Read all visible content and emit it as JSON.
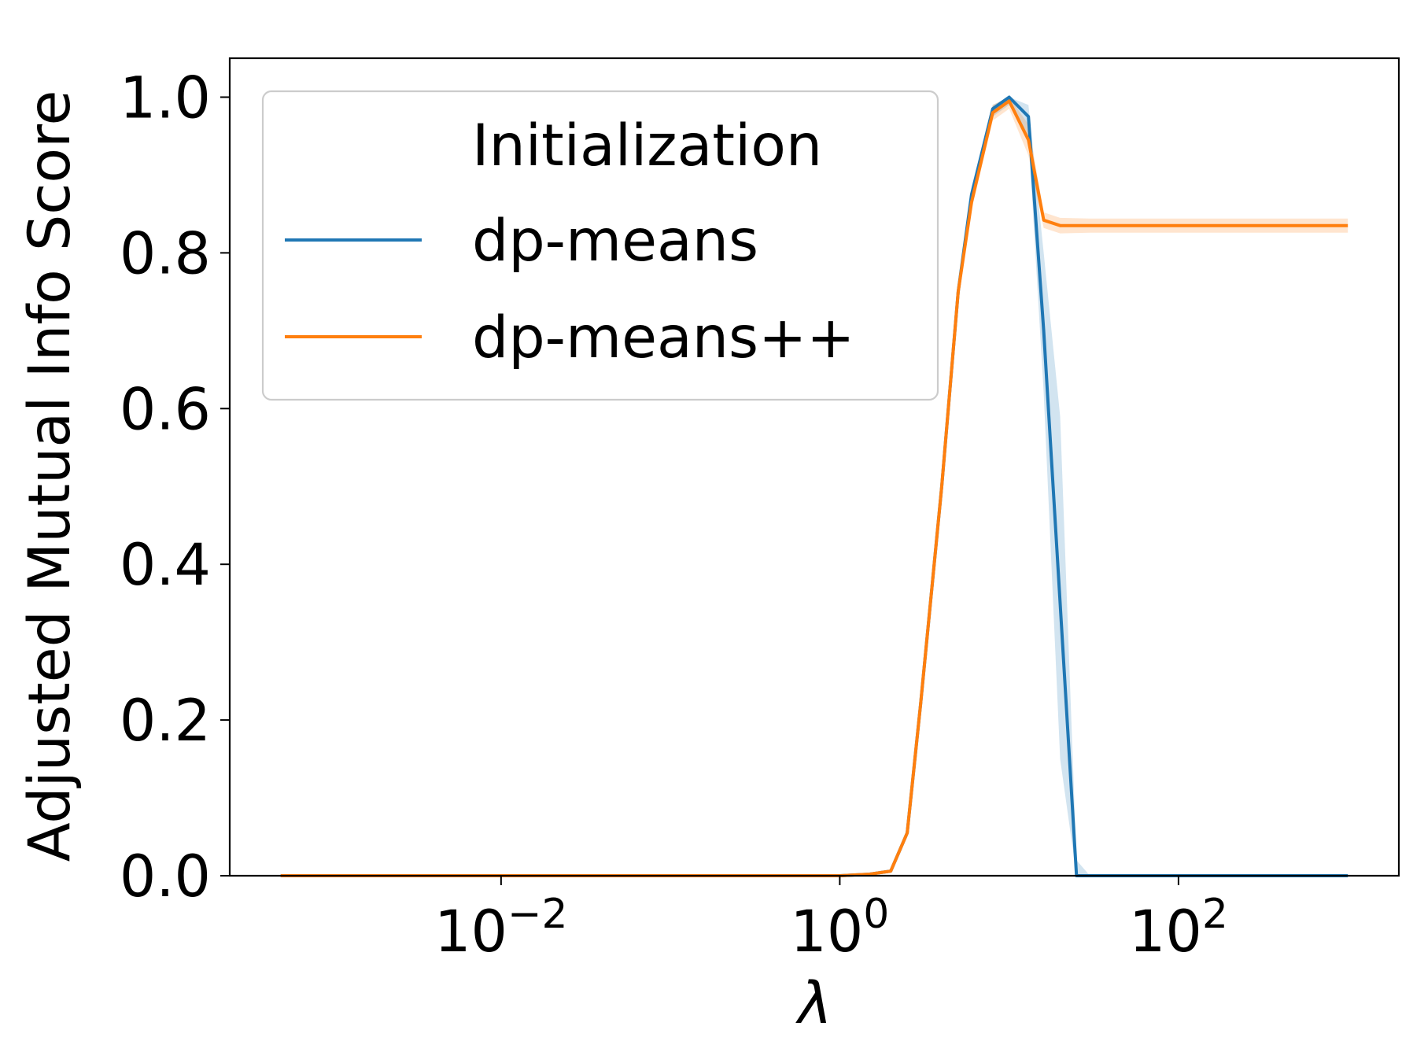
{
  "chart_data": {
    "type": "line",
    "title": "",
    "xlabel": "λ",
    "ylabel": "Adjusted Mutual Info Score",
    "x_scale": "log",
    "xlim": [
      0.00025,
      2000
    ],
    "ylim": [
      0.0,
      1.05
    ],
    "x_ticks": [
      {
        "value": 0.01,
        "base": "10",
        "exp": "−2"
      },
      {
        "value": 1,
        "base": "10",
        "exp": "0"
      },
      {
        "value": 100,
        "base": "10",
        "exp": "2"
      }
    ],
    "y_ticks": [
      {
        "value": 0.0,
        "label": "0.0"
      },
      {
        "value": 0.2,
        "label": "0.2"
      },
      {
        "value": 0.4,
        "label": "0.4"
      },
      {
        "value": 0.6,
        "label": "0.6"
      },
      {
        "value": 0.8,
        "label": "0.8"
      },
      {
        "value": 1.0,
        "label": "1.0"
      }
    ],
    "grid": false,
    "legend": {
      "title": "Initialization",
      "placement": "upper-left"
    },
    "series": [
      {
        "name": "dp-means",
        "color": "#1f77b4",
        "x": [
          0.0005,
          1.0,
          1.5,
          2.0,
          2.5,
          3.0,
          4.0,
          5.0,
          6.0,
          8.0,
          10.0,
          13.0,
          16.0,
          20.0,
          25.0,
          30.0,
          50.0,
          100.0,
          1000.0
        ],
        "y": [
          0.0,
          0.0,
          0.002,
          0.006,
          0.055,
          0.22,
          0.5,
          0.75,
          0.875,
          0.985,
          1.0,
          0.975,
          0.7,
          0.35,
          0.0,
          0.0,
          0.0,
          0.0,
          0.0
        ],
        "y_lower": [
          0.0,
          0.0,
          0.0,
          0.004,
          0.05,
          0.21,
          0.49,
          0.74,
          0.865,
          0.975,
          0.99,
          0.95,
          0.62,
          0.15,
          0.0,
          0.0,
          0.0,
          0.0,
          0.0
        ],
        "y_upper": [
          0.0,
          0.0,
          0.004,
          0.008,
          0.06,
          0.23,
          0.51,
          0.76,
          0.885,
          0.99,
          1.0,
          0.99,
          0.8,
          0.59,
          0.02,
          0.0,
          0.0,
          0.0,
          0.0
        ]
      },
      {
        "name": "dp-means++",
        "color": "#ff7f0e",
        "x": [
          0.0005,
          1.0,
          1.5,
          2.0,
          2.5,
          3.0,
          4.0,
          5.0,
          6.0,
          8.0,
          10.0,
          13.0,
          16.0,
          20.0,
          30.0,
          50.0,
          100.0,
          1000.0
        ],
        "y": [
          0.0,
          0.0,
          0.002,
          0.006,
          0.055,
          0.22,
          0.5,
          0.75,
          0.865,
          0.98,
          0.995,
          0.945,
          0.842,
          0.835,
          0.835,
          0.835,
          0.835,
          0.835
        ],
        "y_lower": [
          0.0,
          0.0,
          0.0,
          0.004,
          0.05,
          0.21,
          0.49,
          0.74,
          0.855,
          0.97,
          0.985,
          0.925,
          0.832,
          0.825,
          0.826,
          0.826,
          0.826,
          0.826
        ],
        "y_upper": [
          0.0,
          0.0,
          0.004,
          0.008,
          0.06,
          0.23,
          0.51,
          0.76,
          0.875,
          0.99,
          1.0,
          0.965,
          0.852,
          0.845,
          0.844,
          0.844,
          0.844,
          0.844
        ]
      }
    ]
  }
}
